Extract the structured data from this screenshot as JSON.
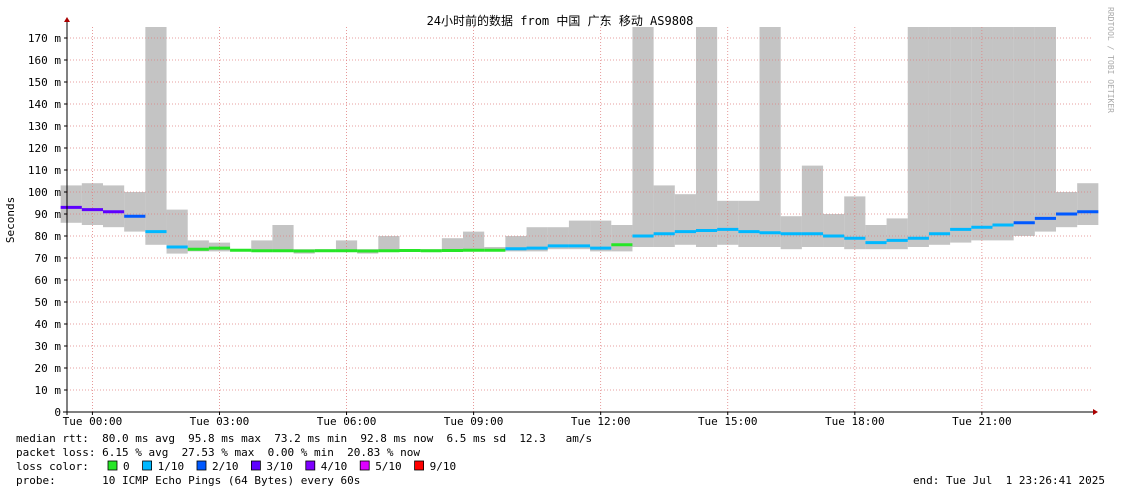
{
  "chart_data": {
    "type": "smokeping",
    "title": "24小时前的数据 from 中国 广东 移动 AS9808",
    "y_label": "Seconds",
    "side_label": "RRDTOOL / TOBI OETIKER",
    "xlim": [
      -0.6,
      23.6
    ],
    "xticks": [
      {
        "value": 0,
        "label": "Tue 00:00"
      },
      {
        "value": 3,
        "label": "Tue 03:00"
      },
      {
        "value": 6,
        "label": "Tue 06:00"
      },
      {
        "value": 9,
        "label": "Tue 09:00"
      },
      {
        "value": 12,
        "label": "Tue 12:00"
      },
      {
        "value": 15,
        "label": "Tue 15:00"
      },
      {
        "value": 18,
        "label": "Tue 18:00"
      },
      {
        "value": 21,
        "label": "Tue 21:00"
      }
    ],
    "ylim": [
      0,
      0.175
    ],
    "yticks": [
      0,
      {
        "value": 0.01,
        "label": "10 m"
      },
      {
        "value": 0.02,
        "label": "20 m"
      },
      {
        "value": 0.03,
        "label": "30 m"
      },
      {
        "value": 0.04,
        "label": "40 m"
      },
      {
        "value": 0.05,
        "label": "50 m"
      },
      {
        "value": 0.06,
        "label": "60 m"
      },
      {
        "value": 0.07,
        "label": "70 m"
      },
      {
        "value": 0.08,
        "label": "80 m"
      },
      {
        "value": 0.09,
        "label": "90 m"
      },
      {
        "value": 0.1,
        "label": "100 m"
      },
      {
        "value": 0.11,
        "label": "110 m"
      },
      {
        "value": 0.12,
        "label": "120 m"
      },
      {
        "value": 0.13,
        "label": "130 m"
      },
      {
        "value": 0.14,
        "label": "140 m"
      },
      {
        "value": 0.15,
        "label": "150 m"
      },
      {
        "value": 0.16,
        "label": "160 m"
      },
      {
        "value": 0.17,
        "label": "170 m"
      }
    ],
    "grid": true,
    "grid_color": "#e08080",
    "smoke_color": "#b0b0b0",
    "x": [
      -0.5,
      0,
      0.5,
      1,
      1.5,
      2,
      2.5,
      3,
      3.5,
      4,
      4.5,
      5,
      5.5,
      6,
      6.5,
      7,
      7.5,
      8,
      8.5,
      9,
      9.5,
      10,
      10.5,
      11,
      11.5,
      12,
      12.5,
      13,
      13.5,
      14,
      14.5,
      15,
      15.5,
      16,
      16.5,
      17,
      17.5,
      18,
      18.5,
      19,
      19.5,
      20,
      20.5,
      21,
      21.5,
      22,
      22.5,
      23,
      23.5
    ],
    "median": [
      0.093,
      0.092,
      0.091,
      0.089,
      0.082,
      0.075,
      0.074,
      0.0745,
      0.0735,
      0.0733,
      0.0733,
      0.0732,
      0.0733,
      0.0733,
      0.0732,
      0.0733,
      0.0734,
      0.0733,
      0.0734,
      0.0735,
      0.0735,
      0.0742,
      0.0745,
      0.0755,
      0.0755,
      0.0745,
      0.076,
      0.08,
      0.081,
      0.082,
      0.0825,
      0.083,
      0.082,
      0.0815,
      0.081,
      0.081,
      0.08,
      0.079,
      0.077,
      0.078,
      0.079,
      0.081,
      0.083,
      0.084,
      0.085,
      0.086,
      0.088,
      0.09,
      0.091
    ],
    "smoke_max": [
      0.103,
      0.104,
      0.103,
      0.1,
      0.175,
      0.092,
      0.078,
      0.077,
      0.074,
      0.078,
      0.085,
      0.074,
      0.074,
      0.078,
      0.074,
      0.08,
      0.074,
      0.074,
      0.079,
      0.082,
      0.075,
      0.08,
      0.084,
      0.084,
      0.087,
      0.087,
      0.085,
      0.175,
      0.103,
      0.099,
      0.175,
      0.096,
      0.096,
      0.175,
      0.089,
      0.112,
      0.09,
      0.098,
      0.085,
      0.088,
      0.175,
      0.175,
      0.175,
      0.175,
      0.175,
      0.175,
      0.175,
      0.1,
      0.104
    ],
    "smoke_min": [
      0.086,
      0.085,
      0.084,
      0.082,
      0.076,
      0.072,
      0.073,
      0.073,
      0.073,
      0.073,
      0.073,
      0.072,
      0.073,
      0.073,
      0.072,
      0.073,
      0.073,
      0.073,
      0.073,
      0.073,
      0.073,
      0.073,
      0.073,
      0.074,
      0.074,
      0.073,
      0.073,
      0.075,
      0.075,
      0.076,
      0.075,
      0.076,
      0.075,
      0.075,
      0.074,
      0.075,
      0.075,
      0.074,
      0.074,
      0.074,
      0.075,
      0.076,
      0.077,
      0.078,
      0.078,
      0.08,
      0.082,
      0.084,
      0.085
    ],
    "loss": [
      3,
      3,
      3,
      2,
      1,
      1,
      0,
      0,
      0,
      0,
      0,
      0,
      0,
      0,
      0,
      0,
      0,
      0,
      0,
      0,
      0,
      1,
      1,
      1,
      1,
      1,
      0,
      1,
      1,
      1,
      1,
      1,
      1,
      1,
      1,
      1,
      1,
      1,
      1,
      1,
      1,
      1,
      1,
      1,
      1,
      2,
      2,
      2,
      2
    ],
    "loss_title": "loss color:",
    "loss_legend": [
      {
        "name": "0",
        "color": "#26e626"
      },
      {
        "name": "1/10",
        "color": "#00b8ff"
      },
      {
        "name": "2/10",
        "color": "#0059ff"
      },
      {
        "name": "3/10",
        "color": "#5e00ff"
      },
      {
        "name": "4/10",
        "color": "#7e00ff"
      },
      {
        "name": "5/10",
        "color": "#dd00ff"
      },
      {
        "name": "9/10",
        "color": "#ff0000"
      }
    ],
    "stats": [
      "median rtt:  80.0 ms avg  95.8 ms max  73.2 ms min  92.8 ms now  6.5 ms sd  12.3   am/s",
      "packet loss: 6.15 % avg  27.53 % max  0.00 % min  20.83 % now"
    ],
    "probe": "probe:       10 ICMP Echo Pings (64 Bytes) every 60s",
    "end": "end: Tue Jul  1 23:26:41 2025"
  }
}
